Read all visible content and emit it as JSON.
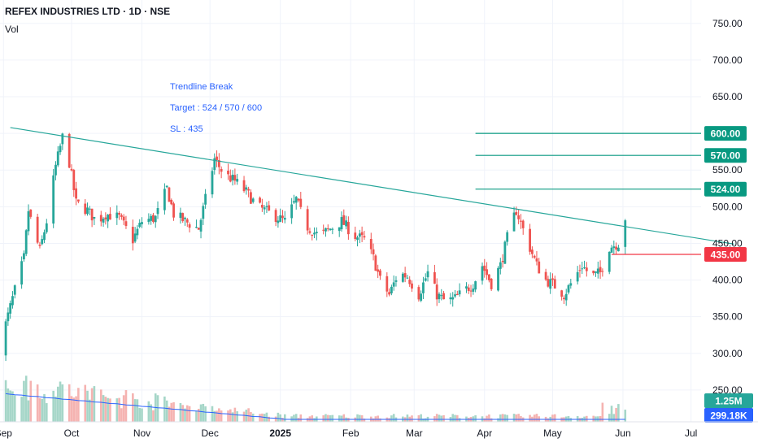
{
  "header": {
    "title": "REFEX INDUSTRIES LTD · 1D · NSE",
    "volume_label": "Vol"
  },
  "annotations": {
    "line1": "Trendline Break",
    "line2": "Target : 524 / 570 / 600",
    "line3": "SL : 435"
  },
  "colors": {
    "up": "#26a69a",
    "down": "#ef5350",
    "trendline": "#26a69a",
    "target": "#089981",
    "stoploss": "#f23645",
    "volume_ma": "#2962ff",
    "vol_up": "#a5d6c8",
    "vol_down": "#f5b3b1",
    "annotation": "#2962ff"
  },
  "chart_data": {
    "type": "candlestick",
    "title": "REFEX INDUSTRIES LTD · 1D · NSE",
    "y_axis": {
      "side": "right",
      "range": [
        230,
        770
      ],
      "ticks": [
        "750.00",
        "700.00",
        "650.00",
        "600.00",
        "550.00",
        "500.00",
        "450.00",
        "400.00",
        "350.00",
        "300.00",
        "250.00"
      ]
    },
    "x_axis": {
      "labels": [
        "Sep",
        "Oct",
        "Nov",
        "Dec",
        "2025",
        "Feb",
        "Mar",
        "Apr",
        "May",
        "Jun",
        "Jul"
      ]
    },
    "levels": [
      {
        "label": "600.00",
        "value": 600,
        "kind": "target"
      },
      {
        "label": "570.00",
        "value": 570,
        "kind": "target"
      },
      {
        "label": "524.00",
        "value": 524,
        "kind": "target"
      },
      {
        "label": "435.00",
        "value": 435,
        "kind": "stop-loss"
      }
    ],
    "trendline": {
      "from": [
        "2024-09-04",
        608
      ],
      "to": [
        "2025-07-20",
        449
      ]
    },
    "price_path": [
      [
        "2024-08-30",
        305
      ],
      [
        "2024-09-05",
        375
      ],
      [
        "2024-09-10",
        430
      ],
      [
        "2024-09-12",
        495
      ],
      [
        "2024-09-14",
        470
      ],
      [
        "2024-09-17",
        440
      ],
      [
        "2024-09-20",
        480
      ],
      [
        "2024-09-24",
        555
      ],
      [
        "2024-09-27",
        595
      ],
      [
        "2024-09-30",
        560
      ],
      [
        "2024-10-03",
        505
      ],
      [
        "2024-10-08",
        495
      ],
      [
        "2024-10-12",
        480
      ],
      [
        "2024-10-16",
        490
      ],
      [
        "2024-10-22",
        485
      ],
      [
        "2024-10-28",
        455
      ],
      [
        "2024-11-01",
        480
      ],
      [
        "2024-11-07",
        485
      ],
      [
        "2024-11-12",
        525
      ],
      [
        "2024-11-15",
        490
      ],
      [
        "2024-11-20",
        480
      ],
      [
        "2024-11-26",
        470
      ],
      [
        "2024-11-29",
        510
      ],
      [
        "2024-12-03",
        565
      ],
      [
        "2024-12-07",
        545
      ],
      [
        "2024-12-12",
        535
      ],
      [
        "2024-12-17",
        520
      ],
      [
        "2024-12-22",
        500
      ],
      [
        "2024-12-28",
        490
      ],
      [
        "2025-01-03",
        480
      ],
      [
        "2025-01-08",
        510
      ],
      [
        "2025-01-12",
        475
      ],
      [
        "2025-01-18",
        460
      ],
      [
        "2025-01-23",
        470
      ],
      [
        "2025-01-28",
        480
      ],
      [
        "2025-02-03",
        460
      ],
      [
        "2025-02-07",
        455
      ],
      [
        "2025-02-11",
        430
      ],
      [
        "2025-02-14",
        400
      ],
      [
        "2025-02-18",
        380
      ],
      [
        "2025-02-22",
        410
      ],
      [
        "2025-02-26",
        405
      ],
      [
        "2025-03-03",
        380
      ],
      [
        "2025-03-07",
        410
      ],
      [
        "2025-03-11",
        380
      ],
      [
        "2025-03-15",
        370
      ],
      [
        "2025-03-19",
        375
      ],
      [
        "2025-03-23",
        385
      ],
      [
        "2025-03-27",
        395
      ],
      [
        "2025-03-31",
        420
      ],
      [
        "2025-04-04",
        395
      ],
      [
        "2025-04-08",
        420
      ],
      [
        "2025-04-12",
        470
      ],
      [
        "2025-04-15",
        495
      ],
      [
        "2025-04-19",
        460
      ],
      [
        "2025-04-24",
        420
      ],
      [
        "2025-04-28",
        400
      ],
      [
        "2025-05-03",
        390
      ],
      [
        "2025-05-06",
        380
      ],
      [
        "2025-05-10",
        400
      ],
      [
        "2025-05-14",
        420
      ],
      [
        "2025-05-18",
        405
      ],
      [
        "2025-05-22",
        410
      ],
      [
        "2025-05-26",
        445
      ],
      [
        "2025-05-30",
        450
      ],
      [
        "2025-06-02",
        485
      ]
    ],
    "volume": {
      "axis_labels": [
        "1.25M",
        "299.18K"
      ]
    }
  }
}
